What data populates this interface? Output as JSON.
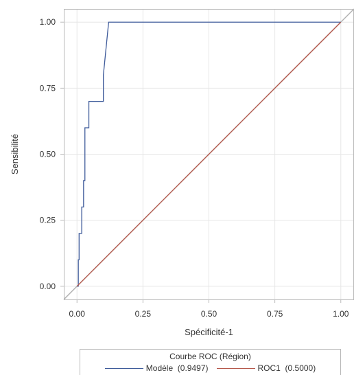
{
  "chart_data": {
    "type": "line",
    "xlabel": "Spécificité-1",
    "ylabel": "Sensibilité",
    "xlim": [
      -0.05,
      1.05
    ],
    "ylim": [
      -0.05,
      1.05
    ],
    "x_ticks": [
      "0.00",
      "0.25",
      "0.50",
      "0.75",
      "1.00"
    ],
    "y_ticks": [
      "0.00",
      "0.25",
      "0.50",
      "0.75",
      "1.00"
    ],
    "grid": true,
    "legend": {
      "title": "Courbe ROC (Région)",
      "placement": "bottom",
      "entries": [
        "Modèle  (0.9497)",
        "ROC1  (0.5000)"
      ]
    },
    "series": [
      {
        "name": "Modèle  (0.9497)",
        "color": "#3d5a9a",
        "step": true,
        "points": [
          [
            0.0,
            0.0
          ],
          [
            0.005,
            0.0
          ],
          [
            0.005,
            0.1
          ],
          [
            0.008,
            0.1
          ],
          [
            0.008,
            0.2
          ],
          [
            0.018,
            0.2
          ],
          [
            0.018,
            0.3
          ],
          [
            0.025,
            0.3
          ],
          [
            0.025,
            0.4
          ],
          [
            0.03,
            0.4
          ],
          [
            0.03,
            0.6
          ],
          [
            0.045,
            0.6
          ],
          [
            0.045,
            0.7
          ],
          [
            0.1,
            0.7
          ],
          [
            0.1,
            0.8
          ],
          [
            0.12,
            1.0
          ],
          [
            1.0,
            1.0
          ]
        ]
      },
      {
        "name": "ROC1  (0.5000)",
        "color": "#b5574a",
        "points": [
          [
            0.0,
            0.0
          ],
          [
            1.0,
            1.0
          ]
        ]
      }
    ],
    "reference_line": {
      "color": "#b0b0b0",
      "from": [
        -0.05,
        -0.05
      ],
      "to": [
        1.05,
        1.05
      ]
    },
    "axis_style": {
      "frame_color": "#b8b8b8",
      "grid_color": "#e6e6e6"
    }
  }
}
